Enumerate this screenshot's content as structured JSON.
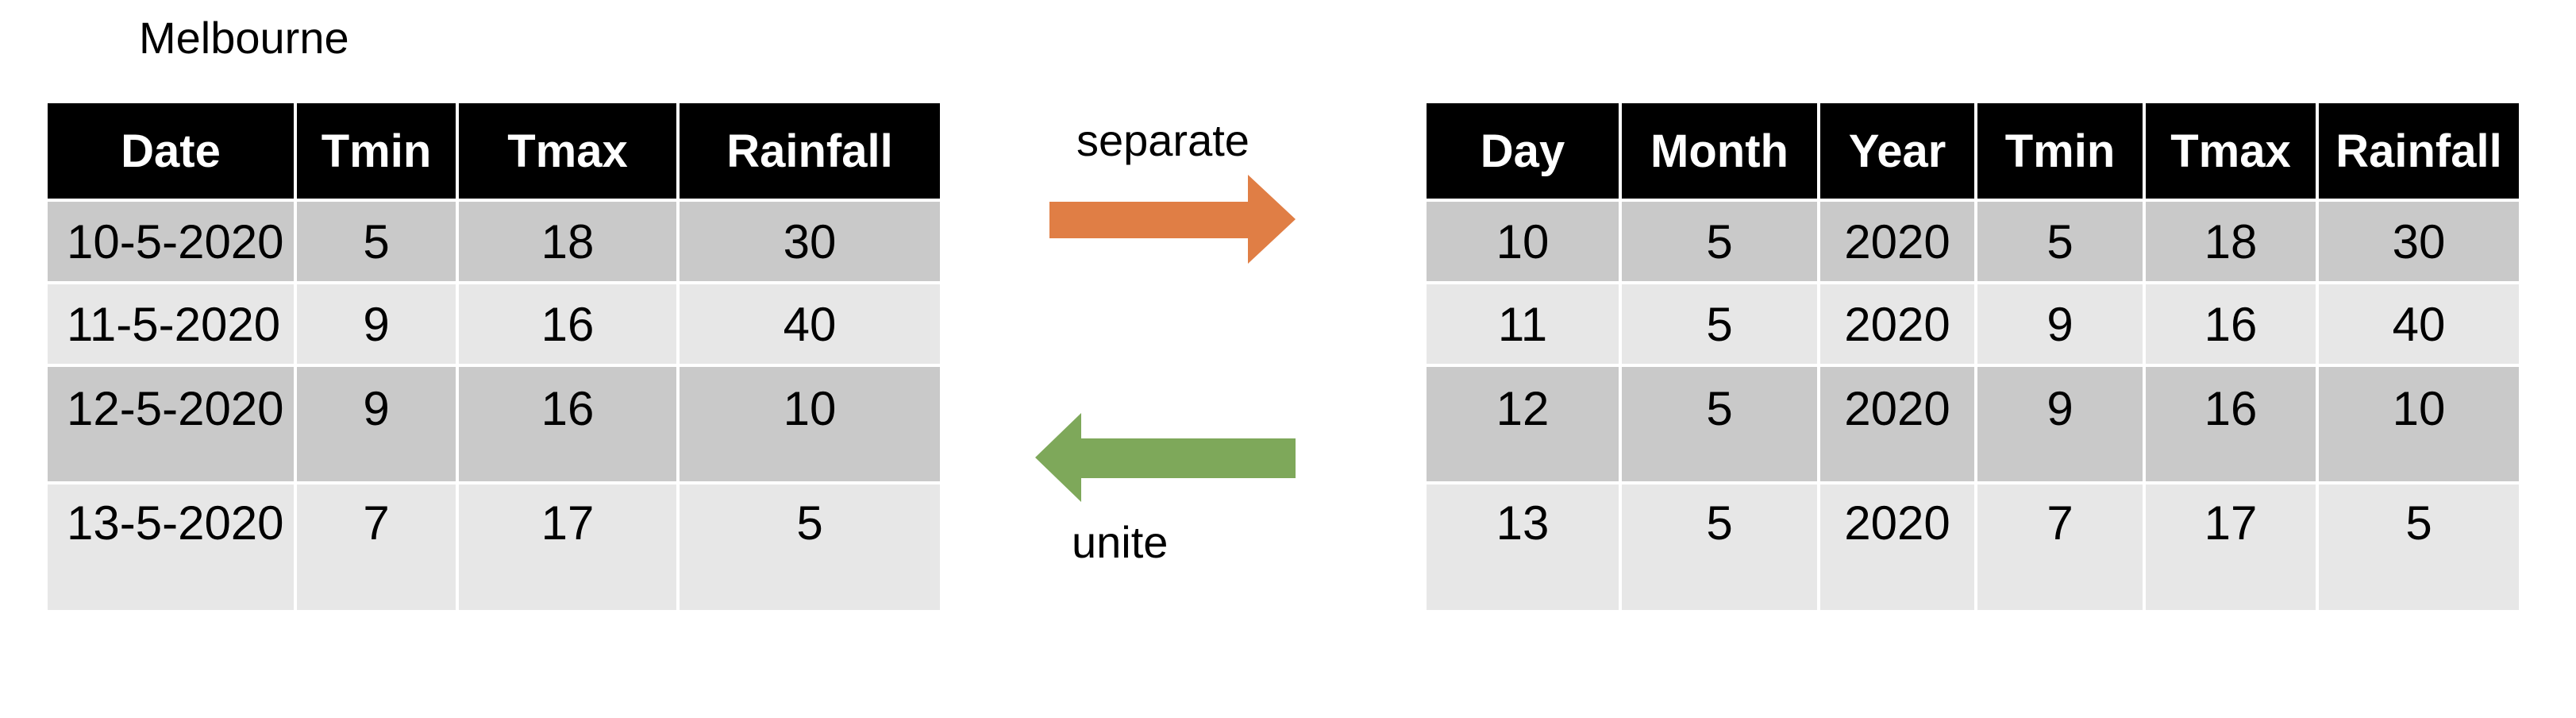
{
  "title": "Melbourne",
  "operations": {
    "separate": {
      "label": "separate",
      "color": "#e07e45"
    },
    "unite": {
      "label": "unite",
      "color": "#7ea85a"
    }
  },
  "left_table": {
    "columns": [
      "Date",
      "Tmin",
      "Tmax",
      "Rainfall"
    ],
    "rows": [
      [
        "10-5-2020",
        "5",
        "18",
        "30"
      ],
      [
        "11-5-2020",
        "9",
        "16",
        "40"
      ],
      [
        "12-5-2020",
        "9",
        "16",
        "10"
      ],
      [
        "13-5-2020",
        "7",
        "17",
        "5"
      ]
    ]
  },
  "right_table": {
    "columns": [
      "Day",
      "Month",
      "Year",
      "Tmin",
      "Tmax",
      "Rainfall"
    ],
    "rows": [
      [
        "10",
        "5",
        "2020",
        "5",
        "18",
        "30"
      ],
      [
        "11",
        "5",
        "2020",
        "9",
        "16",
        "40"
      ],
      [
        "12",
        "5",
        "2020",
        "9",
        "16",
        "10"
      ],
      [
        "13",
        "5",
        "2020",
        "7",
        "17",
        "5"
      ]
    ]
  },
  "colors": {
    "header_bg": "#000000",
    "header_text": "#ffffff",
    "row_dark": "#c9c9c9",
    "row_light": "#e7e7e7"
  }
}
